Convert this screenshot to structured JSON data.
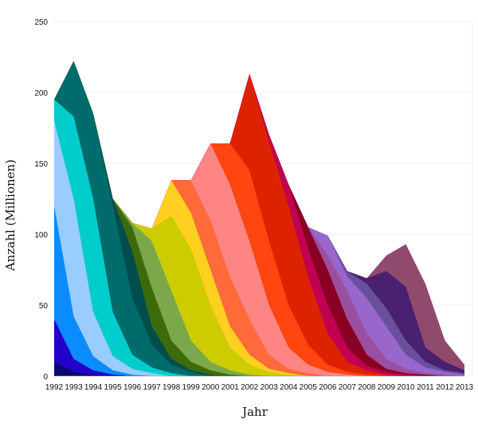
{
  "chart_data": {
    "type": "area",
    "title": "",
    "xlabel": "Jahr",
    "ylabel": "Anzahl (Millionen)",
    "ylim": [
      0,
      250
    ],
    "yticks": [
      0,
      50,
      100,
      150,
      200,
      250
    ],
    "x": [
      1992,
      1993,
      1994,
      1995,
      1996,
      1997,
      1998,
      1999,
      2000,
      2001,
      2002,
      2003,
      2004,
      2005,
      2006,
      2007,
      2008,
      2009,
      2010,
      2011,
      2012,
      2013
    ],
    "grid": true,
    "legend": "none",
    "series_order": "front-to-back",
    "series": [
      {
        "color": "#0a0a6e",
        "values": [
          10,
          3,
          1,
          0,
          0,
          0,
          0,
          0,
          0,
          0,
          0,
          0,
          0,
          0,
          0,
          0,
          0,
          0,
          0,
          0,
          0,
          0
        ]
      },
      {
        "color": "#2200cc",
        "values": [
          40,
          12,
          4,
          1,
          0,
          0,
          0,
          0,
          0,
          0,
          0,
          0,
          0,
          0,
          0,
          0,
          0,
          0,
          0,
          0,
          0,
          0
        ]
      },
      {
        "color": "#0a8cff",
        "values": [
          120,
          42,
          14,
          4,
          1,
          0,
          0,
          0,
          0,
          0,
          0,
          0,
          0,
          0,
          0,
          0,
          0,
          0,
          0,
          0,
          0,
          0
        ]
      },
      {
        "color": "#99ccff",
        "values": [
          180,
          125,
          45,
          14,
          5,
          2,
          0,
          0,
          0,
          0,
          0,
          0,
          0,
          0,
          0,
          0,
          0,
          0,
          0,
          0,
          0,
          0
        ]
      },
      {
        "color": "#00cccc",
        "values": [
          195,
          183,
          125,
          45,
          15,
          6,
          2,
          0,
          0,
          0,
          0,
          0,
          0,
          0,
          0,
          0,
          0,
          0,
          0,
          0,
          0,
          0
        ]
      },
      {
        "color": "#006b6b",
        "values": [
          195,
          222,
          185,
          120,
          55,
          22,
          8,
          3,
          0,
          0,
          0,
          0,
          0,
          0,
          0,
          0,
          0,
          0,
          0,
          0,
          0,
          0
        ]
      },
      {
        "color": "#004d4d",
        "values": [
          195,
          222,
          185,
          125,
          88,
          35,
          12,
          4,
          1,
          0,
          0,
          0,
          0,
          0,
          0,
          0,
          0,
          0,
          0,
          0,
          0,
          0
        ]
      },
      {
        "color": "#3d6b0a",
        "values": [
          null,
          null,
          null,
          124,
          105,
          62,
          25,
          10,
          4,
          1,
          0,
          0,
          0,
          0,
          0,
          0,
          0,
          0,
          0,
          0,
          0,
          0
        ]
      },
      {
        "color": "#7ba84a",
        "values": [
          null,
          null,
          null,
          124,
          108,
          95,
          60,
          25,
          10,
          4,
          1,
          0,
          0,
          0,
          0,
          0,
          0,
          0,
          0,
          0,
          0,
          0
        ]
      },
      {
        "color": "#cccc00",
        "values": [
          null,
          null,
          null,
          null,
          108,
          104,
          113,
          90,
          50,
          20,
          8,
          3,
          1,
          0,
          0,
          0,
          0,
          0,
          0,
          0,
          0,
          0
        ]
      },
      {
        "color": "#ffd020",
        "values": [
          null,
          null,
          null,
          null,
          null,
          104,
          138,
          115,
          75,
          35,
          15,
          5,
          2,
          0,
          0,
          0,
          0,
          0,
          0,
          0,
          0,
          0
        ]
      },
      {
        "color": "#ff6a3a",
        "values": [
          null,
          null,
          null,
          null,
          null,
          null,
          138,
          138,
          110,
          70,
          40,
          15,
          5,
          2,
          0,
          0,
          0,
          0,
          0,
          0,
          0,
          0
        ]
      },
      {
        "color": "#ff8585",
        "values": [
          null,
          null,
          null,
          null,
          null,
          null,
          null,
          138,
          164,
          135,
          95,
          50,
          20,
          8,
          3,
          1,
          0,
          0,
          0,
          0,
          0,
          0
        ]
      },
      {
        "color": "#ff4510",
        "values": [
          null,
          null,
          null,
          null,
          null,
          null,
          null,
          null,
          164,
          164,
          145,
          95,
          50,
          22,
          8,
          3,
          1,
          0,
          0,
          0,
          0,
          0
        ]
      },
      {
        "color": "#dd2200",
        "values": [
          null,
          null,
          null,
          null,
          null,
          null,
          null,
          null,
          null,
          164,
          213,
          165,
          120,
          70,
          30,
          10,
          4,
          1,
          0,
          0,
          0,
          0
        ]
      },
      {
        "color": "#c00050",
        "values": [
          null,
          null,
          null,
          null,
          null,
          null,
          null,
          null,
          null,
          null,
          213,
          170,
          135,
          90,
          50,
          20,
          7,
          3,
          1,
          0,
          0,
          0
        ]
      },
      {
        "color": "#8a0025",
        "values": [
          null,
          null,
          null,
          null,
          null,
          null,
          null,
          null,
          null,
          null,
          null,
          170,
          135,
          105,
          75,
          40,
          15,
          5,
          2,
          1,
          0,
          0
        ]
      },
      {
        "color": "#9b4fa0",
        "values": [
          null,
          null,
          null,
          null,
          null,
          null,
          null,
          null,
          null,
          null,
          null,
          null,
          135,
          105,
          85,
          60,
          30,
          12,
          5,
          2,
          1,
          0
        ]
      },
      {
        "color": "#9966cc",
        "values": [
          null,
          null,
          null,
          null,
          null,
          null,
          null,
          null,
          null,
          null,
          null,
          null,
          null,
          104,
          99,
          70,
          55,
          35,
          15,
          6,
          3,
          1
        ]
      },
      {
        "color": "#6a4f9e",
        "values": [
          null,
          null,
          null,
          null,
          null,
          null,
          null,
          null,
          null,
          null,
          null,
          null,
          null,
          null,
          99,
          74,
          65,
          48,
          25,
          10,
          4,
          2
        ]
      },
      {
        "color": "#4a2070",
        "values": [
          null,
          null,
          null,
          null,
          null,
          null,
          null,
          null,
          null,
          null,
          null,
          null,
          null,
          null,
          null,
          74,
          69,
          74,
          63,
          20,
          10,
          4
        ]
      },
      {
        "color": "#8f4a6e",
        "values": [
          null,
          null,
          null,
          null,
          null,
          null,
          null,
          null,
          null,
          null,
          null,
          null,
          null,
          null,
          null,
          null,
          69,
          85,
          93,
          65,
          25,
          8
        ]
      }
    ]
  }
}
